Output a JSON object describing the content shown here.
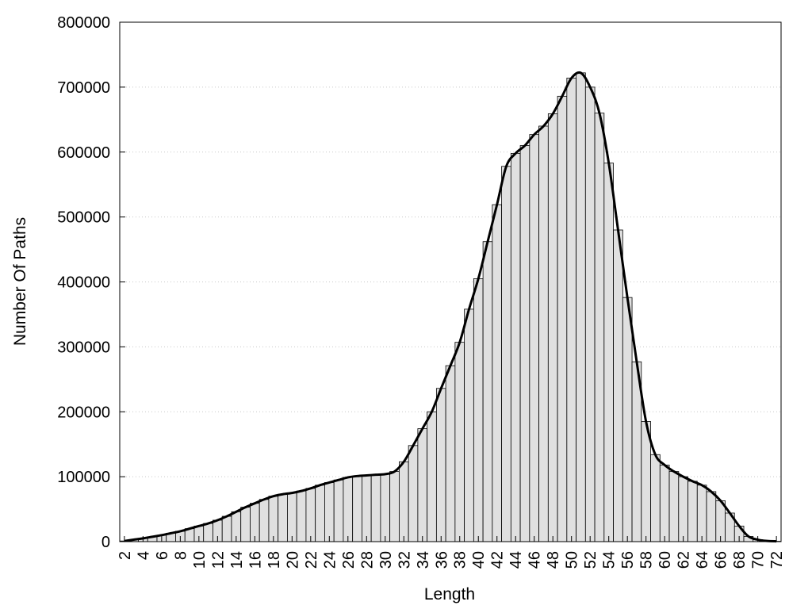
{
  "colors": {
    "bar_fill": "#e0e0e0",
    "bar_stroke": "#000000",
    "curve": "#000000",
    "grid": "#c8c8c8",
    "frame": "#000000",
    "background": "#ffffff"
  },
  "chart_data": {
    "type": "bar",
    "title": "",
    "xlabel": "Length",
    "ylabel": "Number Of Paths",
    "xlim": [
      1.5,
      72.5
    ],
    "ylim": [
      0,
      800000
    ],
    "y_ticks": [
      0,
      100000,
      200000,
      300000,
      400000,
      500000,
      600000,
      700000,
      800000
    ],
    "y_tick_labels": [
      "0",
      "100000",
      "200000",
      "300000",
      "400000",
      "500000",
      "600000",
      "700000",
      "800000"
    ],
    "x_ticks": [
      2,
      4,
      6,
      8,
      10,
      12,
      14,
      16,
      18,
      20,
      22,
      24,
      26,
      28,
      30,
      32,
      34,
      36,
      38,
      40,
      42,
      44,
      46,
      48,
      50,
      52,
      54,
      56,
      58,
      60,
      62,
      64,
      66,
      68,
      70,
      72
    ],
    "x_tick_labels": [
      "2",
      "4",
      "6",
      "8",
      "10",
      "12",
      "14",
      "16",
      "18",
      "20",
      "22",
      "24",
      "26",
      "28",
      "30",
      "32",
      "34",
      "36",
      "38",
      "40",
      "42",
      "44",
      "46",
      "48",
      "50",
      "52",
      "54",
      "56",
      "58",
      "60",
      "62",
      "64",
      "66",
      "68",
      "70",
      "72"
    ],
    "grid": "horizontal dotted",
    "legend": "none",
    "series": [
      {
        "kind": "histogram",
        "x": [
          2,
          3,
          4,
          5,
          6,
          7,
          8,
          9,
          10,
          11,
          12,
          13,
          14,
          15,
          16,
          17,
          18,
          19,
          20,
          21,
          22,
          23,
          24,
          25,
          26,
          27,
          28,
          29,
          30,
          31,
          32,
          33,
          34,
          35,
          36,
          37,
          38,
          39,
          40,
          41,
          42,
          43,
          44,
          45,
          46,
          47,
          48,
          49,
          50,
          51,
          52,
          53,
          54,
          55,
          56,
          57,
          58,
          59,
          60,
          61,
          62,
          63,
          64,
          65,
          66,
          67,
          68,
          69,
          70,
          71,
          72
        ],
        "values": [
          1000,
          3000,
          5000,
          7500,
          10000,
          13000,
          16000,
          20000,
          24000,
          28000,
          33000,
          39000,
          46000,
          53000,
          59000,
          65000,
          70000,
          73000,
          75000,
          78000,
          82000,
          87000,
          91000,
          95000,
          99000,
          101000,
          102000,
          103000,
          104000,
          108000,
          123000,
          148000,
          174000,
          200000,
          236000,
          271000,
          307000,
          358000,
          405000,
          462000,
          519000,
          578000,
          598000,
          610000,
          627000,
          640000,
          659000,
          686000,
          714000,
          722000,
          700000,
          660000,
          583000,
          480000,
          376000,
          277000,
          185000,
          134000,
          118000,
          108000,
          100000,
          93000,
          87000,
          77000,
          63000,
          44000,
          24000,
          8000,
          3000,
          1000,
          500
        ]
      },
      {
        "kind": "smooth-line",
        "x": [
          2,
          3,
          4,
          5,
          6,
          7,
          8,
          9,
          10,
          11,
          12,
          13,
          14,
          15,
          16,
          17,
          18,
          19,
          20,
          21,
          22,
          23,
          24,
          25,
          26,
          27,
          28,
          29,
          30,
          31,
          32,
          33,
          34,
          35,
          36,
          37,
          38,
          39,
          40,
          41,
          42,
          43,
          44,
          45,
          46,
          47,
          48,
          49,
          50,
          51,
          52,
          53,
          54,
          55,
          56,
          57,
          58,
          59,
          60,
          61,
          62,
          63,
          64,
          65,
          66,
          67,
          68,
          69,
          70,
          71,
          72
        ],
        "values": [
          1000,
          3000,
          5000,
          7500,
          10000,
          13000,
          16000,
          20000,
          24000,
          28000,
          33000,
          39000,
          46000,
          53000,
          59000,
          65000,
          70000,
          73000,
          75000,
          78000,
          82000,
          87000,
          91000,
          95000,
          99000,
          101000,
          102000,
          103000,
          104000,
          108000,
          123000,
          148000,
          174000,
          200000,
          236000,
          271000,
          307000,
          358000,
          405000,
          462000,
          519000,
          578000,
          598000,
          610000,
          627000,
          640000,
          659000,
          686000,
          714000,
          722000,
          700000,
          660000,
          583000,
          480000,
          376000,
          277000,
          185000,
          134000,
          118000,
          108000,
          100000,
          93000,
          87000,
          77000,
          63000,
          44000,
          24000,
          8000,
          3000,
          1000,
          500
        ]
      }
    ]
  }
}
